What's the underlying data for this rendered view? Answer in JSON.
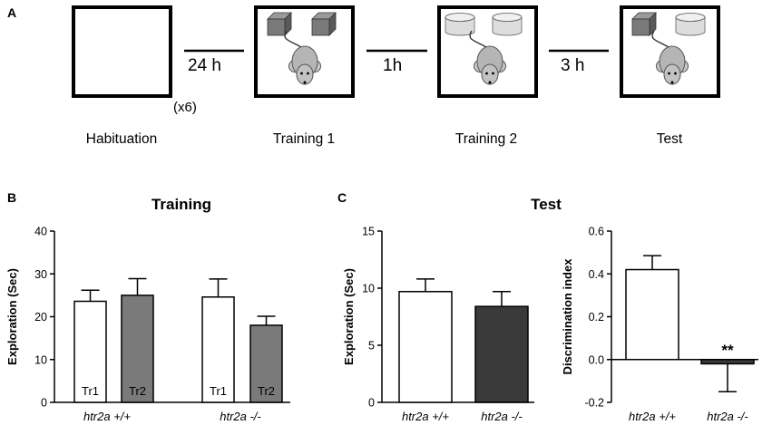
{
  "panel_a": {
    "letter": "A",
    "stages": [
      {
        "label": "Habituation"
      },
      {
        "label": "Training 1"
      },
      {
        "label": "Training 2"
      },
      {
        "label": "Test"
      }
    ],
    "intervals": [
      "24 h",
      "1h",
      "3 h"
    ],
    "repeat_note": "(x6)"
  },
  "panel_b": {
    "letter": "B",
    "title": "Training"
  },
  "panel_c": {
    "letter": "C",
    "title": "Test"
  },
  "chart_data": [
    {
      "type": "bar",
      "title": "Training",
      "ylabel": "Exploration (Sec)",
      "ylim": [
        0,
        40
      ],
      "yticks": [
        0,
        10,
        20,
        30,
        40
      ],
      "categories": [
        "htr2a +/+",
        "htr2a -/-"
      ],
      "series": [
        {
          "name": "Tr1",
          "color": "#ffffff",
          "values": [
            23.6,
            24.6
          ],
          "error": [
            2.6,
            4.2
          ]
        },
        {
          "name": "Tr2",
          "color": "#7a7a7a",
          "values": [
            25.0,
            18.0
          ],
          "error": [
            3.9,
            2.1
          ]
        }
      ]
    },
    {
      "type": "bar",
      "title": "Test",
      "ylabel": "Exploration (Sec)",
      "ylim": [
        0,
        15
      ],
      "yticks": [
        0,
        5,
        10,
        15
      ],
      "categories": [
        "htr2a +/+",
        "htr2a -/-"
      ],
      "values": [
        9.7,
        8.4
      ],
      "error": [
        1.1,
        1.3
      ],
      "colors": [
        "#ffffff",
        "#3a3a3a"
      ]
    },
    {
      "type": "bar",
      "title": "",
      "ylabel": "Discrimination index",
      "ylim": [
        -0.2,
        0.6
      ],
      "yticks": [
        -0.2,
        0.0,
        0.2,
        0.4,
        0.6
      ],
      "categories": [
        "htr2a +/+",
        "htr2a -/-"
      ],
      "values": [
        0.42,
        -0.02
      ],
      "error": [
        0.065,
        0.13
      ],
      "colors": [
        "#ffffff",
        "#3a3a3a"
      ],
      "annotation": "**"
    }
  ]
}
